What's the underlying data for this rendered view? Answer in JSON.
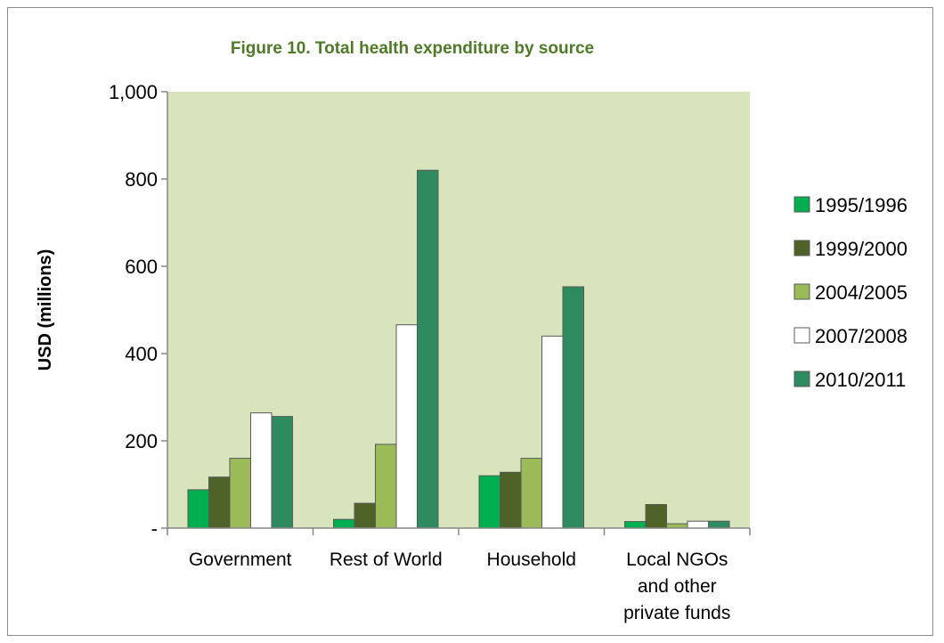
{
  "chart_data": {
    "type": "bar",
    "title": "Figure 10.  Total health expenditure by source",
    "xlabel": "",
    "ylabel": "USD (millions)",
    "ylim": [
      0,
      1000
    ],
    "yticks": [
      "-",
      "200",
      "400",
      "600",
      "800",
      "1,000"
    ],
    "categories": [
      [
        "Government"
      ],
      [
        "Rest of World"
      ],
      [
        "Household"
      ],
      [
        "Local NGOs",
        "and other",
        "private funds"
      ]
    ],
    "series": [
      {
        "name": "1995/1996",
        "color": "#00b050",
        "values": [
          88,
          20,
          120,
          15
        ]
      },
      {
        "name": "1999/2000",
        "color": "#4f6228",
        "values": [
          117,
          57,
          128,
          54
        ]
      },
      {
        "name": "2004/2005",
        "color": "#9bbb59",
        "values": [
          160,
          192,
          160,
          10
        ]
      },
      {
        "name": "2007/2008",
        "color": "#ffffff",
        "values": [
          264,
          466,
          440,
          16
        ]
      },
      {
        "name": "2010/2011",
        "color": "#2e8b5f",
        "values": [
          256,
          820,
          553,
          16
        ]
      }
    ],
    "plot_background": "#d8e4bc",
    "legend_position": "right",
    "grid": false
  }
}
